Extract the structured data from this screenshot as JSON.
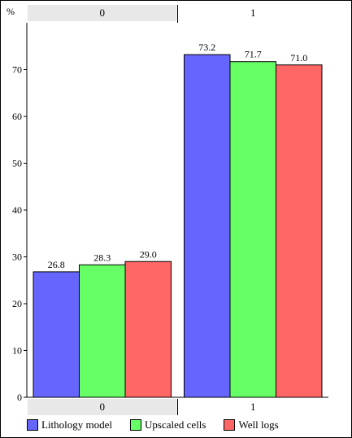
{
  "chart_data": {
    "type": "bar",
    "ylabel": "%",
    "ylim": [
      0,
      80
    ],
    "yticks": [
      0,
      10,
      20,
      30,
      40,
      50,
      60,
      70
    ],
    "categories": [
      "0",
      "1"
    ],
    "series": [
      {
        "name": "Lithology model",
        "color": "#6666ff",
        "values": [
          26.8,
          73.2
        ],
        "labels": [
          "26.8",
          "73.2"
        ]
      },
      {
        "name": "Upscaled cells",
        "color": "#66ff66",
        "values": [
          28.3,
          71.7
        ],
        "labels": [
          "28.3",
          "71.7"
        ]
      },
      {
        "name": "Well logs",
        "color": "#ff6666",
        "values": [
          29.0,
          71.0
        ],
        "labels": [
          "29.0",
          "71.0"
        ]
      }
    ],
    "legend_position": "bottom",
    "grid": false
  }
}
